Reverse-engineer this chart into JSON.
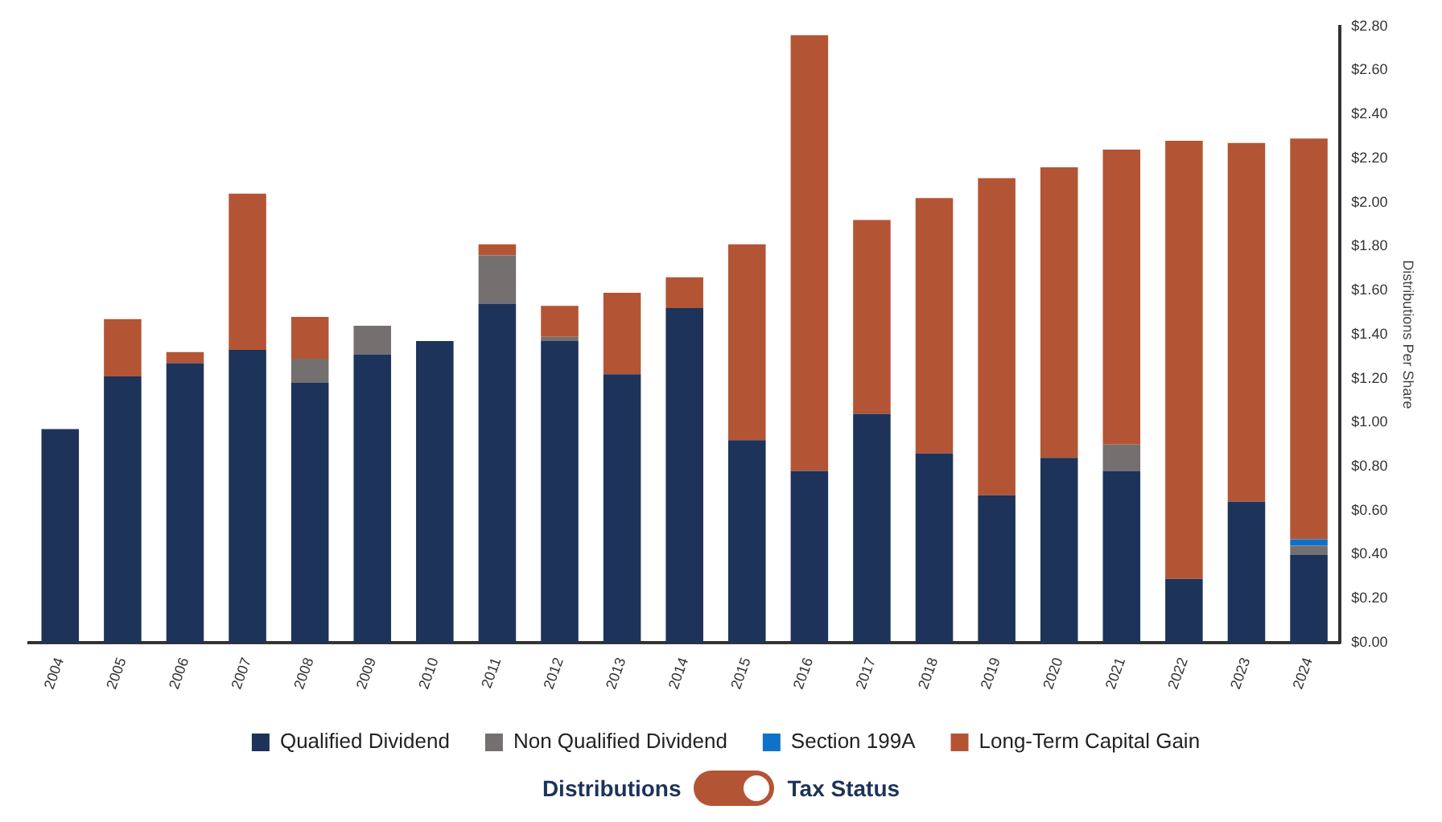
{
  "chart_data": {
    "type": "bar",
    "stacked": true,
    "ylabel": "Distributions Per Share",
    "categories": [
      "2004",
      "2005",
      "2006",
      "2007",
      "2008",
      "2009",
      "2010",
      "2011",
      "2012",
      "2013",
      "2014",
      "2015",
      "2016",
      "2017",
      "2018",
      "2019",
      "2020",
      "2021",
      "2022",
      "2023",
      "2024"
    ],
    "series": [
      {
        "name": "Qualified Dividend",
        "color": "#1d3359",
        "values": [
          0.97,
          1.21,
          1.27,
          1.33,
          1.18,
          1.31,
          1.37,
          1.54,
          1.37,
          1.22,
          1.52,
          0.92,
          0.78,
          1.04,
          0.86,
          0.67,
          0.84,
          0.78,
          0.29,
          0.64,
          0.4
        ]
      },
      {
        "name": "Non Qualified Dividend",
        "color": "#747070",
        "values": [
          null,
          null,
          null,
          null,
          0.11,
          0.13,
          null,
          0.22,
          0.02,
          null,
          null,
          null,
          null,
          null,
          null,
          null,
          null,
          0.12,
          null,
          null,
          0.04
        ]
      },
      {
        "name": "Section 199A",
        "color": "#0f72c6",
        "values": [
          null,
          null,
          null,
          null,
          null,
          null,
          null,
          null,
          null,
          null,
          null,
          null,
          null,
          null,
          null,
          null,
          null,
          null,
          null,
          null,
          0.03
        ]
      },
      {
        "name": "Long-Term Capital Gain",
        "color": "#b35535",
        "values": [
          null,
          0.26,
          0.05,
          0.71,
          0.19,
          null,
          null,
          0.05,
          0.14,
          0.37,
          0.14,
          0.89,
          1.98,
          0.88,
          1.16,
          1.44,
          1.32,
          1.34,
          1.99,
          1.63,
          1.82
        ]
      }
    ],
    "ylim": [
      0,
      2.8
    ],
    "yticks": [
      {
        "value": 0,
        "label": "$0.00"
      },
      {
        "value": 0.2,
        "label": "$0.20"
      },
      {
        "value": 0.4,
        "label": "$0.40"
      },
      {
        "value": 0.6,
        "label": "$0.60"
      },
      {
        "value": 0.8,
        "label": "$0.80"
      },
      {
        "value": 1,
        "label": "$1.00"
      },
      {
        "value": 1.2,
        "label": "$1.20"
      },
      {
        "value": 1.4,
        "label": "$1.40"
      },
      {
        "value": 1.6,
        "label": "$1.60"
      },
      {
        "value": 1.8,
        "label": "$1.80"
      },
      {
        "value": 2,
        "label": "$2.00"
      },
      {
        "value": 2.2,
        "label": "$2.20"
      },
      {
        "value": 2.4,
        "label": "$2.40"
      },
      {
        "value": 2.6,
        "label": "$2.60"
      },
      {
        "value": 2.8,
        "label": "$2.80"
      }
    ],
    "grid": false,
    "legend": "bottom",
    "annotations": [
      "Distributions",
      "Tax Status"
    ]
  }
}
